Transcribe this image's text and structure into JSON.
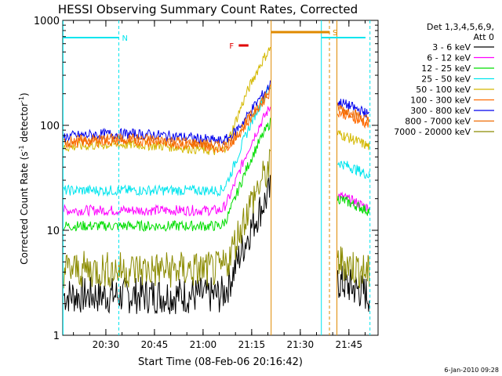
{
  "colors": {
    "n_marker": "#00e5ee",
    "s_marker": "#e08a00",
    "f_marker": "#e00000"
  },
  "chart_data": {
    "type": "line",
    "title": "HESSI Observing Summary Count Rates, Corrected",
    "xlabel": "Start Time (08-Feb-06 20:16:42)",
    "ylabel_main": "Corrected Count Rate (s",
    "ylabel_sup1": "-1",
    "ylabel_mid": " detector",
    "ylabel_sup2": "-1",
    "ylabel_end": ")",
    "yscale": "log",
    "ylim": [
      1,
      1000
    ],
    "xlim_minutes": [
      20.28,
      21.9
    ],
    "x_ticks": [
      "20:30",
      "20:45",
      "21:00",
      "21:15",
      "21:30",
      "21:45"
    ],
    "y_ticks": [
      "1",
      "10",
      "100",
      "1000"
    ],
    "legend_title": [
      "Det 1,3,4,5,6,9,",
      "Att 0"
    ],
    "legend_placement": "right",
    "series": [
      {
        "name": "3 - 6 keV",
        "color": "#000000",
        "base": 2.4,
        "seg2": 2.4
      },
      {
        "name": "6 - 12 keV",
        "color": "#ff00ff",
        "base": 15.5,
        "seg2": 16
      },
      {
        "name": "12 - 25 keV",
        "color": "#00dd00",
        "base": 11,
        "seg2": 15
      },
      {
        "name": "25 - 50 keV",
        "color": "#00e5ee",
        "base": 24,
        "seg2": 33
      },
      {
        "name": "50 - 100 keV",
        "color": "#d4b800",
        "base": 57,
        "seg2": 62
      },
      {
        "name": "100 - 300 keV",
        "color": "#ff6a00",
        "base": 62,
        "seg2": 100
      },
      {
        "name": "300 - 800 keV",
        "color": "#0000ee",
        "base": 72,
        "seg2": 125
      },
      {
        "name": "800 - 7000 keV",
        "color": "#ee6a00",
        "base": 65,
        "seg2": 110
      },
      {
        "name": "7000 - 20000 keV",
        "color": "#8b8b00",
        "base": 4.2,
        "seg2": 3.8
      }
    ],
    "markers": [
      {
        "label": "N",
        "start": "20:16:42",
        "end": "20:34:00"
      },
      {
        "label": "S",
        "start": "21:21:00",
        "end": "21:39:00"
      },
      {
        "label": "F",
        "start": "21:11:00",
        "end": "21:14:00"
      }
    ],
    "footer_date": "6-Jan-2010 09:28"
  }
}
